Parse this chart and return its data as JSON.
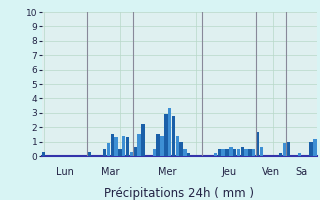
{
  "title": "",
  "xlabel": "Précipitations 24h ( mm )",
  "background_color": "#d8f4f4",
  "plot_bg_color": "#dff0f0",
  "bar_color_dark": "#1a5fa8",
  "bar_color_light": "#3d8fd4",
  "grid_color": "#b8d8c8",
  "day_sep_color": "#888899",
  "bottom_spine_color": "#3333aa",
  "ylim": [
    0,
    10
  ],
  "yticks": [
    0,
    1,
    2,
    3,
    4,
    5,
    6,
    7,
    8,
    9,
    10
  ],
  "day_labels": [
    "Lun",
    "Mar",
    "Mer",
    "Jeu",
    "Ven",
    "Sa"
  ],
  "day_bar_starts": [
    0,
    12,
    24,
    42,
    56,
    64
  ],
  "day_bar_ends": [
    12,
    24,
    42,
    56,
    64,
    72
  ],
  "day_sep_positions": [
    12,
    24,
    42,
    56,
    64
  ],
  "n_bars": 72,
  "values": [
    0.3,
    0.0,
    0.0,
    0.0,
    0.0,
    0.0,
    0.0,
    0.0,
    0.0,
    0.0,
    0.0,
    0.0,
    0.3,
    0.0,
    0.0,
    0.0,
    0.5,
    0.9,
    1.5,
    1.3,
    0.5,
    1.4,
    1.3,
    0.3,
    0.6,
    1.5,
    2.2,
    0.0,
    0.0,
    0.5,
    1.5,
    1.4,
    2.9,
    3.3,
    2.8,
    1.4,
    1.0,
    0.5,
    0.2,
    0.0,
    0.0,
    0.0,
    0.0,
    0.0,
    0.0,
    0.2,
    0.5,
    0.5,
    0.5,
    0.6,
    0.5,
    0.5,
    0.6,
    0.5,
    0.5,
    0.5,
    1.7,
    0.6,
    0.0,
    0.0,
    0.0,
    0.0,
    0.2,
    0.9,
    1.0,
    0.0,
    0.0,
    0.2,
    0.0,
    0.0,
    1.0,
    1.2
  ],
  "xlabel_fontsize": 8.5,
  "tick_fontsize": 6.5,
  "day_label_fontsize": 7.0
}
